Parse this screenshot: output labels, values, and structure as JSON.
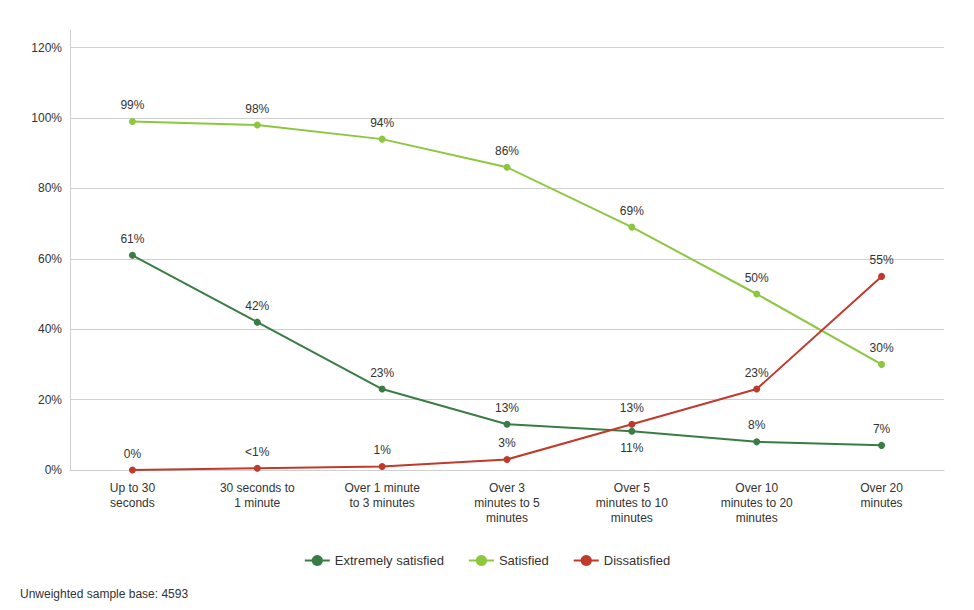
{
  "chart_data": {
    "type": "line",
    "categories": [
      "Up to 30\nseconds",
      "30 seconds to\n1 minute",
      "Over 1 minute\nto 3 minutes",
      "Over 3\nminutes to 5\nminutes",
      "Over 5\nminutes to 10\nminutes",
      "Over 10\nminutes to 20\nminutes",
      "Over 20\nminutes"
    ],
    "series": [
      {
        "name": "Extremely satisfied",
        "color": "#3a7d44",
        "marker": "circle",
        "values": [
          61,
          42,
          23,
          13,
          11,
          8,
          7
        ],
        "value_labels": [
          "61%",
          "42%",
          "23%",
          "13%",
          "11%",
          "8%",
          "7%"
        ]
      },
      {
        "name": "Satisfied",
        "color": "#8dc63f",
        "marker": "circle",
        "values": [
          99,
          98,
          94,
          86,
          69,
          50,
          30
        ],
        "value_labels": [
          "99%",
          "98%",
          "94%",
          "86%",
          "69%",
          "50%",
          "30%"
        ]
      },
      {
        "name": "Dissatisfied",
        "color": "#c0392b",
        "marker": "circle",
        "values": [
          0,
          0.5,
          1,
          3,
          13,
          23,
          55
        ],
        "value_labels": [
          "0%",
          "<1%",
          "1%",
          "3%",
          "13%",
          "23%",
          "55%"
        ]
      }
    ],
    "ylim": [
      0,
      125
    ],
    "yticks": [
      {
        "value": 0,
        "label": "0%"
      },
      {
        "value": 20,
        "label": "20%"
      },
      {
        "value": 40,
        "label": "40%"
      },
      {
        "value": 60,
        "label": "60%"
      },
      {
        "value": 80,
        "label": "80%"
      },
      {
        "value": 100,
        "label": "100%"
      },
      {
        "value": 120,
        "label": "120%"
      }
    ],
    "grid": true,
    "legend": "bottom",
    "data_labels": true,
    "footnote": "Unweighted sample base: 4593"
  }
}
